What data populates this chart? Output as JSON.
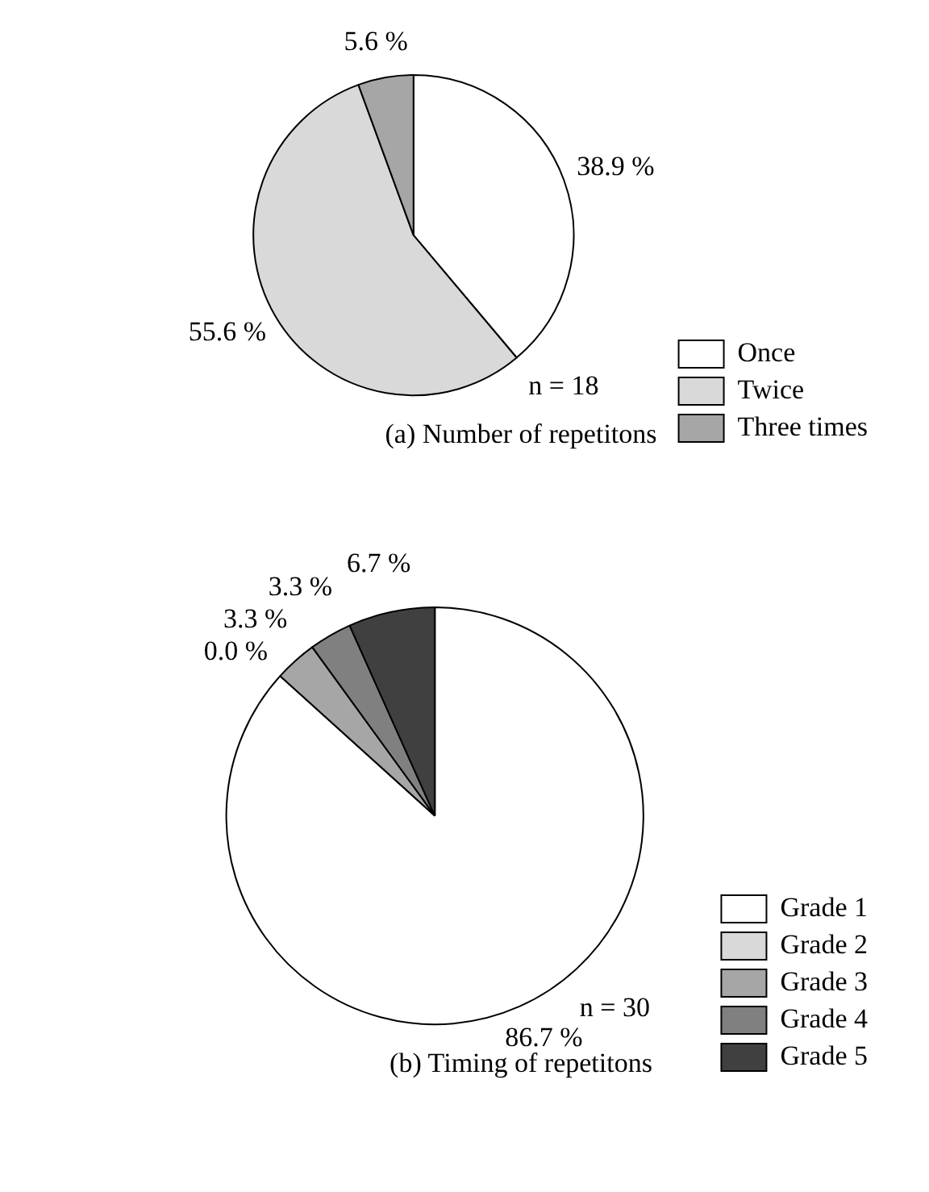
{
  "chart_data": [
    {
      "type": "pie",
      "title": "(a) Number of repetitons",
      "categories": [
        "Once",
        "Twice",
        "Three times"
      ],
      "values": [
        38.9,
        55.6,
        5.6
      ],
      "colors": [
        "#ffffff",
        "#d9d9d9",
        "#a6a6a6"
      ],
      "value_labels": [
        "38.9 %",
        "55.6 %",
        "5.6 %"
      ],
      "annotations": [
        "n = 18"
      ],
      "legend": "right"
    },
    {
      "type": "pie",
      "title": "(b) Timing of repetitons",
      "categories": [
        "Grade 1",
        "Grade 2",
        "Grade 3",
        "Grade 4",
        "Grade 5"
      ],
      "values": [
        86.7,
        0.0,
        3.3,
        3.3,
        6.7
      ],
      "colors": [
        "#ffffff",
        "#d9d9d9",
        "#a6a6a6",
        "#808080",
        "#404040"
      ],
      "value_labels": [
        "86.7 %",
        "0.0 %",
        "3.3 %",
        "3.3 %",
        "6.7 %"
      ],
      "annotations": [
        "n = 30"
      ],
      "legend": "right"
    }
  ]
}
